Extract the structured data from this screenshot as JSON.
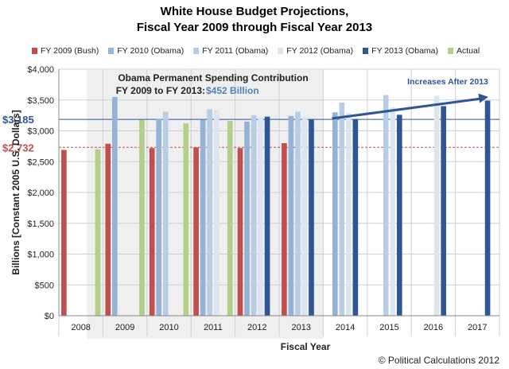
{
  "chart_data": {
    "type": "bar",
    "title": "White House Budget Projections,",
    "subtitle": "Fiscal Year 2009 through Fiscal Year 2013",
    "xlabel": "Fiscal Year",
    "ylabel": "Billions [Constant 2005 U.S. Dollars]",
    "ylim": [
      0,
      4000
    ],
    "ytick_labels": [
      "$0",
      "$500",
      "$1,000",
      "$1,500",
      "$2,000",
      "$2,500",
      "$3,000",
      "$3,500",
      "$4,000"
    ],
    "categories": [
      "2008",
      "2009",
      "2010",
      "2011",
      "2012",
      "2013",
      "2014",
      "2015",
      "2016",
      "2017"
    ],
    "series": [
      {
        "name": "FY 2009 (Bush)",
        "color": "#c0504d",
        "values": [
          2690,
          2790,
          2720,
          2730,
          2720,
          2800,
          null,
          null,
          null,
          null
        ]
      },
      {
        "name": "FY 2010 (Obama)",
        "color": "#95b3d7",
        "values": [
          null,
          3550,
          3190,
          3180,
          3150,
          3240,
          3300,
          null,
          null,
          null
        ]
      },
      {
        "name": "FY 2011 (Obama)",
        "color": "#b9cde5",
        "values": [
          null,
          null,
          3310,
          3350,
          3250,
          3310,
          3460,
          3580,
          null,
          null
        ]
      },
      {
        "name": "FY 2012 (Obama)",
        "color": "#dce6f2",
        "values": [
          null,
          null,
          null,
          3330,
          3220,
          3220,
          3290,
          3380,
          3570,
          null
        ]
      },
      {
        "name": "FY 2013 (Obama)",
        "color": "#2e5596",
        "values": [
          null,
          null,
          null,
          null,
          3230,
          3180,
          3190,
          3260,
          3400,
          3490
        ]
      },
      {
        "name": "Actual",
        "color": "#b2d08a",
        "values": [
          2700,
          3180,
          3120,
          3160,
          null,
          null,
          null,
          null,
          null,
          null
        ]
      }
    ],
    "reference_lines": [
      {
        "label": "$3,185",
        "value": 3185,
        "color": "#2e5596"
      },
      {
        "label": "$2,732",
        "value": 2732,
        "color": "#c0504d"
      }
    ],
    "annotation_box": {
      "line1": "Obama Permanent Spending Contribution",
      "line2": "FY 2009 to FY 2013: ",
      "amount": "$452 Billion"
    },
    "arrow_label": "Increases After 2013",
    "credit": "© Political Calculations 2012"
  },
  "colors": {
    "grid": "#d0d0d0",
    "shade": "#efefef",
    "axis": "#888888",
    "arrow": "#2e5596"
  }
}
